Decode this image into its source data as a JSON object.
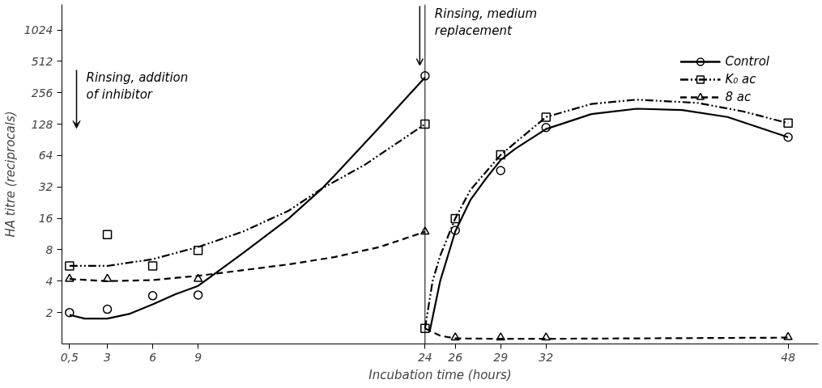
{
  "chart_data": {
    "type": "line",
    "xlabel": "Incubation time (hours)",
    "ylabel": "HA titre (reciprocals)",
    "log": "y",
    "xlim": [
      0,
      50
    ],
    "xticks": [
      {
        "value": 0.5,
        "label": "0,5"
      },
      3,
      6,
      9,
      24,
      26,
      29,
      32,
      48
    ],
    "ylim": [
      1,
      1800
    ],
    "yticks": [
      2,
      4,
      8,
      16,
      32,
      64,
      128,
      256,
      512,
      1024
    ],
    "legend": "top right",
    "ref_lines": [
      {
        "axis": "x",
        "value": 24,
        "color": "#000000"
      }
    ],
    "annotations": [
      "Rinsing, addition\nof inhibitor",
      "Rinsing, medium\nreplacement"
    ],
    "series": [
      {
        "name": "Control",
        "type": "scatter",
        "marker": "circle",
        "color": "#000000",
        "x": [
          0.5,
          3,
          6,
          9,
          24,
          26,
          29,
          32,
          48
        ],
        "values": [
          2,
          2.15,
          2.9,
          2.95,
          372,
          12.3,
          46,
          119,
          96
        ]
      },
      {
        "line_style": "solid",
        "color": "#000000",
        "x": [
          0.5,
          1.5,
          3,
          4.5,
          6,
          7.5,
          9,
          12,
          15,
          17.2,
          18,
          21,
          24
        ],
        "values": [
          1.9,
          1.75,
          1.75,
          1.95,
          2.4,
          3.0,
          3.6,
          7.5,
          16,
          31,
          41,
          120,
          360
        ]
      },
      {
        "line_style": "solid",
        "color": "#000000",
        "x": [
          24.3,
          25,
          26,
          27,
          28,
          29,
          30,
          32,
          35,
          38,
          41,
          44,
          48
        ],
        "values": [
          1.3,
          4,
          12,
          24,
          38,
          58,
          75,
          115,
          160,
          180,
          175,
          150,
          96
        ]
      },
      {
        "name": "K₀ ac",
        "type": "scatter",
        "marker": "square",
        "color": "#000000",
        "x": [
          0.5,
          3,
          6,
          9,
          24,
          24,
          26,
          29,
          32,
          48
        ],
        "values": [
          5.6,
          11.2,
          5.6,
          7.9,
          128,
          1.41,
          15.9,
          65,
          149,
          131
        ]
      },
      {
        "line_style": "dashdotdot",
        "color": "#000000",
        "x": [
          0.5,
          3,
          6,
          9,
          12,
          15,
          17.2,
          20,
          24
        ],
        "values": [
          5.6,
          5.6,
          6.5,
          8.5,
          12,
          19,
          31,
          52,
          128
        ]
      },
      {
        "line_style": "dashdotdot",
        "color": "#000000",
        "x": [
          24,
          24.5,
          25,
          26,
          27,
          29,
          32,
          35,
          38,
          42,
          45,
          48
        ],
        "values": [
          1.41,
          4,
          7,
          16,
          30,
          65,
          150,
          200,
          220,
          205,
          170,
          131
        ]
      },
      {
        "name": "8 ac",
        "type": "scatter",
        "marker": "triangle",
        "color": "#000000",
        "x": [
          0.5,
          3,
          9,
          24,
          26,
          29,
          32,
          48
        ],
        "values": [
          4.2,
          4.2,
          4.2,
          11.9,
          1.15,
          1.15,
          1.15,
          1.16
        ]
      },
      {
        "line_style": "dashed",
        "color": "#000000",
        "x": [
          0.5,
          3,
          6,
          9,
          12,
          15,
          18,
          21,
          24
        ],
        "values": [
          4.2,
          4.0,
          4.1,
          4.5,
          5.1,
          5.8,
          6.8,
          8.5,
          11.9
        ]
      },
      {
        "line_style": "dashed",
        "color": "#000000",
        "x": [
          24,
          25,
          26,
          29,
          32,
          48
        ],
        "values": [
          1.41,
          1.2,
          1.13,
          1.12,
          1.12,
          1.15
        ]
      }
    ]
  }
}
